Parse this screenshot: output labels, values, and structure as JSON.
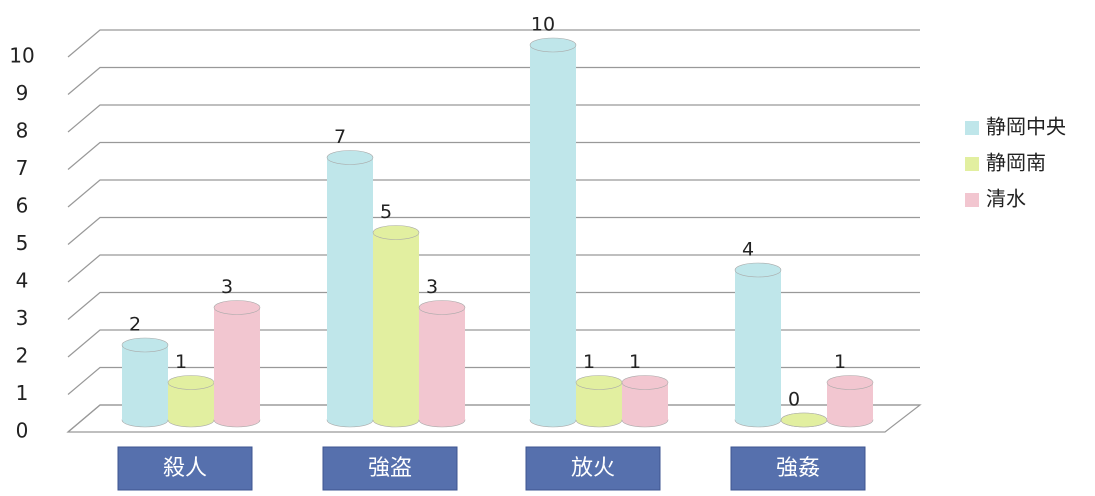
{
  "chart_data": {
    "type": "bar",
    "categories": [
      "殺人",
      "強盗",
      "放火",
      "強姦"
    ],
    "series": [
      {
        "name": "静岡中央",
        "color": "#bfe6ea",
        "values": [
          2,
          7,
          10,
          4
        ]
      },
      {
        "name": "静岡南",
        "color": "#e2efa0",
        "values": [
          1,
          5,
          1,
          0
        ]
      },
      {
        "name": "清水",
        "color": "#f2c6d0",
        "values": [
          3,
          3,
          1,
          1
        ]
      }
    ],
    "ylim": [
      0,
      10
    ],
    "yticks": [
      0,
      1,
      2,
      3,
      4,
      5,
      6,
      7,
      8,
      9,
      10
    ],
    "grid": true,
    "legend": "right"
  }
}
